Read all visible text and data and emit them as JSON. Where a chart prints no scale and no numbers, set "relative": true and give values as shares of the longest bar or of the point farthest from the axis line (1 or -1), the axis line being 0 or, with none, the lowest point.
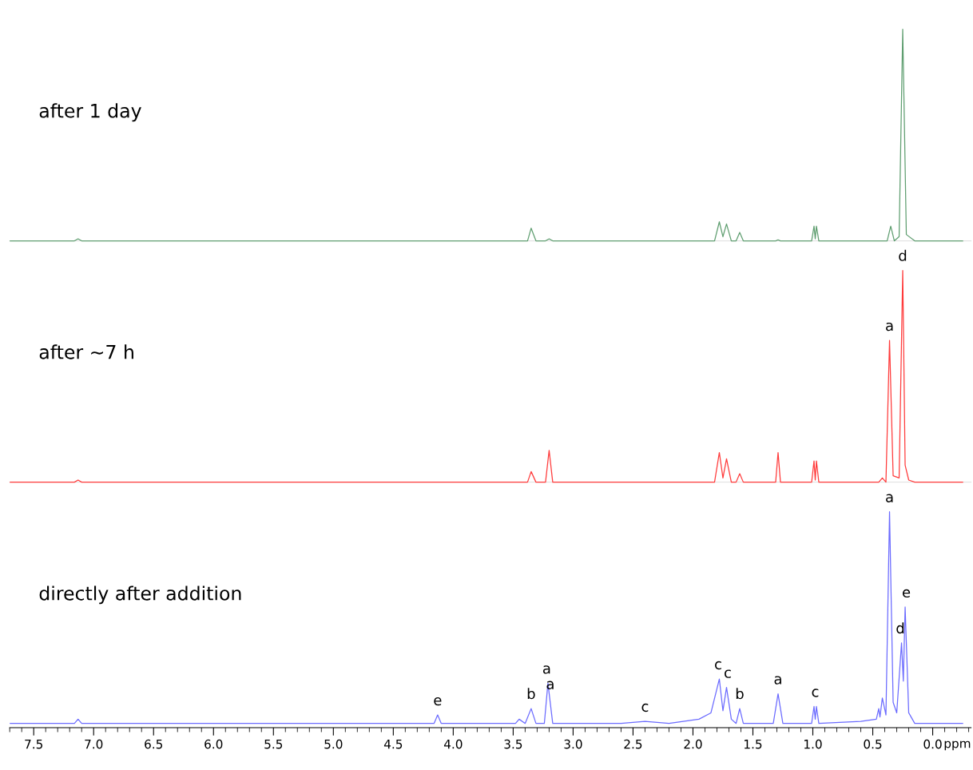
{
  "chart_data": [
    {
      "type": "line",
      "relative": true,
      "xlim": [
        7.7,
        -0.32
      ],
      "tick_labels": false,
      "grid": false,
      "legend": false,
      "series": [
        {
          "name": "after 1 day",
          "color": "#5f9e70",
          "x": [
            7.7,
            7.16,
            7.13,
            7.1,
            3.38,
            3.35,
            3.31,
            3.23,
            3.2,
            3.17,
            1.82,
            1.78,
            1.75,
            1.72,
            1.68,
            1.64,
            1.61,
            1.58,
            1.31,
            1.29,
            1.27,
            1.01,
            0.99,
            0.98,
            0.97,
            0.95,
            0.38,
            0.35,
            0.32,
            0.28,
            0.25,
            0.22,
            0.15,
            -0.25
          ],
          "values": [
            0,
            0,
            0.01,
            0,
            0,
            0.06,
            0,
            0,
            0.01,
            0,
            0,
            0.09,
            0.02,
            0.08,
            0,
            0,
            0.04,
            0,
            0,
            0.005,
            0,
            0,
            0.07,
            0.01,
            0.07,
            0,
            0,
            0.07,
            0,
            0.02,
            1,
            0.03,
            0,
            0
          ]
        }
      ]
    },
    {
      "type": "line",
      "relative": true,
      "xlim": [
        7.7,
        -0.32
      ],
      "tick_labels": false,
      "grid": false,
      "legend": false,
      "series": [
        {
          "name": "after ~7 h",
          "color": "#ff3b3b",
          "x": [
            7.7,
            7.16,
            7.13,
            7.1,
            3.38,
            3.35,
            3.31,
            3.23,
            3.2,
            3.17,
            1.82,
            1.78,
            1.75,
            1.72,
            1.68,
            1.64,
            1.61,
            1.58,
            1.31,
            1.29,
            1.27,
            1.01,
            0.99,
            0.98,
            0.97,
            0.95,
            0.45,
            0.42,
            0.39,
            0.36,
            0.33,
            0.28,
            0.25,
            0.23,
            0.2,
            0.15,
            -0.25
          ],
          "values": [
            0,
            0,
            0.01,
            0,
            0,
            0.05,
            0,
            0,
            0.15,
            0,
            0,
            0.14,
            0.02,
            0.11,
            0,
            0,
            0.04,
            0,
            0,
            0.14,
            0,
            0,
            0.1,
            0.01,
            0.1,
            0,
            0,
            0.02,
            0,
            0.67,
            0.03,
            0.02,
            1,
            0.08,
            0.01,
            0,
            0
          ]
        }
      ],
      "annotations": [
        {
          "text": "a",
          "x": 0.36,
          "y": 0.67
        },
        {
          "text": "d",
          "x": 0.25,
          "y": 1
        }
      ]
    },
    {
      "type": "line",
      "relative": true,
      "xlim": [
        7.7,
        -0.32
      ],
      "tick_labels": "x",
      "xlabel": "ppm",
      "grid": false,
      "legend": false,
      "xticks": [
        {
          "value": 7.5,
          "label": "7.5"
        },
        {
          "value": 7.0,
          "label": "7.0"
        },
        {
          "value": 6.5,
          "label": "6.5"
        },
        {
          "value": 6.0,
          "label": "6.0"
        },
        {
          "value": 5.5,
          "label": "5.5"
        },
        {
          "value": 5.0,
          "label": "5.0"
        },
        {
          "value": 4.5,
          "label": "4.5"
        },
        {
          "value": 4.0,
          "label": "4.0"
        },
        {
          "value": 3.5,
          "label": "3.5"
        },
        {
          "value": 3.0,
          "label": "3.0"
        },
        {
          "value": 2.5,
          "label": "2.5"
        },
        {
          "value": 2.0,
          "label": "2.0"
        },
        {
          "value": 1.5,
          "label": "1.5"
        },
        {
          "value": 1.0,
          "label": "1.0"
        },
        {
          "value": 0.5,
          "label": "0.5"
        },
        {
          "value": 0.0,
          "label": "0.0"
        }
      ],
      "series": [
        {
          "name": "directly after addition",
          "color": "#6b6bff",
          "x": [
            7.7,
            7.16,
            7.13,
            7.1,
            4.16,
            4.13,
            4.1,
            3.48,
            3.45,
            3.4,
            3.35,
            3.31,
            3.24,
            3.21,
            3.17,
            2.6,
            2.4,
            2.2,
            1.95,
            1.85,
            1.78,
            1.75,
            1.72,
            1.68,
            1.64,
            1.61,
            1.58,
            1.33,
            1.29,
            1.25,
            1.01,
            0.99,
            0.98,
            0.97,
            0.95,
            0.6,
            0.47,
            0.45,
            0.44,
            0.42,
            0.39,
            0.36,
            0.33,
            0.3,
            0.26,
            0.245,
            0.23,
            0.2,
            0.15,
            -0.1,
            -0.25
          ],
          "values": [
            0,
            0,
            0.02,
            0,
            0,
            0.04,
            0,
            0,
            0.02,
            0,
            0.07,
            0,
            0,
            0.19,
            0,
            0,
            0.01,
            0,
            0.02,
            0.05,
            0.21,
            0.06,
            0.17,
            0.02,
            0,
            0.07,
            0,
            0,
            0.14,
            0,
            0,
            0.08,
            0.02,
            0.08,
            0,
            0.01,
            0.02,
            0.07,
            0.03,
            0.12,
            0.04,
            1,
            0.1,
            0.05,
            0.38,
            0.2,
            0.55,
            0.05,
            0,
            0,
            0
          ]
        }
      ],
      "annotations": [
        {
          "text": "e",
          "x": 4.13,
          "y": 0.04
        },
        {
          "text": "b",
          "x": 3.35,
          "y": 0.07
        },
        {
          "text": "a",
          "x": 3.22,
          "y": 0.19
        },
        {
          "text": "a",
          "x": 3.19,
          "y": 0.19
        },
        {
          "text": "c",
          "x": 2.4,
          "y": 0.01
        },
        {
          "text": "c",
          "x": 1.79,
          "y": 0.21
        },
        {
          "text": "c",
          "x": 1.71,
          "y": 0.17
        },
        {
          "text": "b",
          "x": 1.61,
          "y": 0.07
        },
        {
          "text": "a",
          "x": 1.29,
          "y": 0.14
        },
        {
          "text": "c",
          "x": 0.98,
          "y": 0.08
        },
        {
          "text": "a",
          "x": 0.36,
          "y": 1
        },
        {
          "text": "d",
          "x": 0.27,
          "y": 0.38
        },
        {
          "text": "e",
          "x": 0.22,
          "y": 0.55
        }
      ]
    }
  ]
}
